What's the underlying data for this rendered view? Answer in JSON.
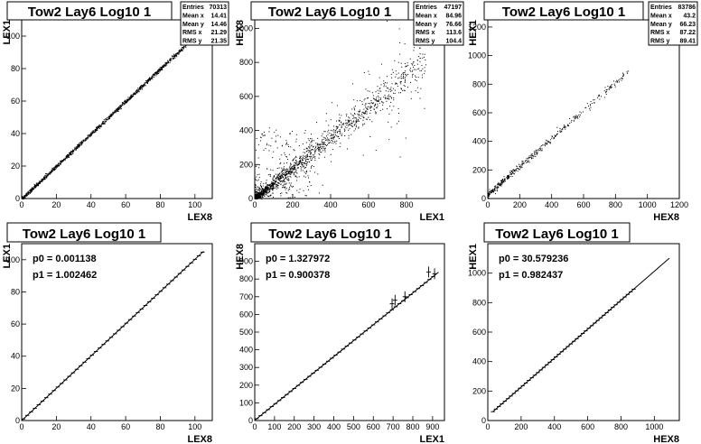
{
  "chart_data": [
    {
      "type": "scatter",
      "title": "Tow2 Lay6 Log10 1",
      "xlabel": "LEX8",
      "ylabel": "LEX1",
      "xlim": [
        0,
        110
      ],
      "ylim": [
        0,
        110
      ],
      "xticks": [
        0,
        20,
        40,
        60,
        80,
        100
      ],
      "yticks": [
        0,
        20,
        40,
        60,
        80,
        100
      ],
      "stats": [
        {
          "label": "Entries",
          "value": "70313"
        },
        {
          "label": "Mean x",
          "value": "14.41"
        },
        {
          "label": "Mean y",
          "value": "14.46"
        },
        {
          "label": "RMS x",
          "value": "21.29"
        },
        {
          "label": "RMS y",
          "value": "21.35"
        }
      ],
      "trend": {
        "slope": 1.0,
        "intercept": 0.0,
        "x_range": [
          0,
          105
        ],
        "noise": 0.6
      },
      "density": "dense-linear"
    },
    {
      "type": "scatter",
      "title": "Tow2 Lay6 Log10 1",
      "xlabel": "LEX1",
      "ylabel": "HEX8",
      "xlim": [
        0,
        1000
      ],
      "ylim": [
        0,
        1050
      ],
      "xticks": [
        0,
        200,
        400,
        600,
        800
      ],
      "yticks": [
        0,
        200,
        400,
        600,
        800,
        1000
      ],
      "stats": [
        {
          "label": "Entries",
          "value": "47197"
        },
        {
          "label": "Mean x",
          "value": "84.96"
        },
        {
          "label": "Mean y",
          "value": "76.66"
        },
        {
          "label": "RMS x",
          "value": "113.6"
        },
        {
          "label": "RMS y",
          "value": "104.4"
        }
      ],
      "trend": {
        "slope": 0.9,
        "intercept": 1.3,
        "x_range": [
          0,
          900
        ],
        "noise": 25
      },
      "density": "noisy-linear"
    },
    {
      "type": "scatter",
      "title": "Tow2 Lay6 Log10 1",
      "xlabel": "HEX8",
      "ylabel": "HEX1",
      "xlim": [
        0,
        1200
      ],
      "ylim": [
        0,
        1250
      ],
      "xticks": [
        0,
        200,
        400,
        600,
        800,
        1000,
        1200
      ],
      "yticks": [
        0,
        200,
        400,
        600,
        800,
        1000,
        1200
      ],
      "stats": [
        {
          "label": "Entries",
          "value": "83786"
        },
        {
          "label": "Mean x",
          "value": "43.2"
        },
        {
          "label": "Mean y",
          "value": "66.23"
        },
        {
          "label": "RMS x",
          "value": "87.22"
        },
        {
          "label": "RMS y",
          "value": "89.41"
        }
      ],
      "trend": {
        "slope": 0.982437,
        "intercept": 30.6,
        "x_range": [
          0,
          880
        ],
        "noise": 12
      },
      "density": "sparse-linear"
    },
    {
      "type": "line",
      "title": "Tow2 Lay6 Log10 1",
      "xlabel": "LEX8",
      "ylabel": "LEX1",
      "xlim": [
        0,
        110
      ],
      "ylim": [
        0,
        110
      ],
      "xticks": [
        0,
        20,
        40,
        60,
        80,
        100
      ],
      "yticks": [
        0,
        20,
        40,
        60,
        80,
        100
      ],
      "fit": [
        {
          "label": "p0 = 0.001138"
        },
        {
          "label": "p1 = 1.002462"
        }
      ],
      "fit_line": {
        "p0": 0.001138,
        "p1": 1.002462,
        "x_range": [
          0,
          105
        ]
      },
      "profile": {
        "x_start": 1,
        "x_end": 105,
        "step": 2.2
      }
    },
    {
      "type": "line",
      "title": "Tow2 Lay6 Log10 1",
      "xlabel": "LEX1",
      "ylabel": "HEX8",
      "xlim": [
        0,
        960
      ],
      "ylim": [
        0,
        1000
      ],
      "xticks": [
        0,
        100,
        200,
        300,
        400,
        500,
        600,
        700,
        800,
        900
      ],
      "yticks": [
        0,
        100,
        200,
        300,
        400,
        500,
        600,
        700,
        800,
        900
      ],
      "fit": [
        {
          "label": "p0 = 1.327972"
        },
        {
          "label": "p1 = 0.900378"
        }
      ],
      "fit_line": {
        "p0": 1.327972,
        "p1": 0.900378,
        "x_range": [
          0,
          930
        ]
      },
      "profile": {
        "x_start": 10,
        "x_end": 920,
        "step": 19
      },
      "outliers": [
        {
          "x": 695,
          "y": 660
        },
        {
          "x": 710,
          "y": 680
        },
        {
          "x": 760,
          "y": 700
        },
        {
          "x": 880,
          "y": 840
        },
        {
          "x": 910,
          "y": 830
        }
      ]
    },
    {
      "type": "line",
      "title": "Tow2 Lay6 Log10 1",
      "xlabel": "HEX8",
      "ylabel": "HEX1",
      "xlim": [
        0,
        1150
      ],
      "ylim": [
        0,
        1200
      ],
      "xticks": [
        0,
        200,
        400,
        600,
        800,
        1000
      ],
      "yticks": [
        0,
        200,
        400,
        600,
        800,
        1000
      ],
      "fit": [
        {
          "label": "p0 = 30.579236"
        },
        {
          "label": "p1 = 0.982437"
        }
      ],
      "fit_line": {
        "p0": 30.579236,
        "p1": 0.982437,
        "x_range": [
          30,
          1090
        ]
      },
      "profile": {
        "x_start": 30,
        "x_end": 880,
        "step": 18
      }
    }
  ]
}
